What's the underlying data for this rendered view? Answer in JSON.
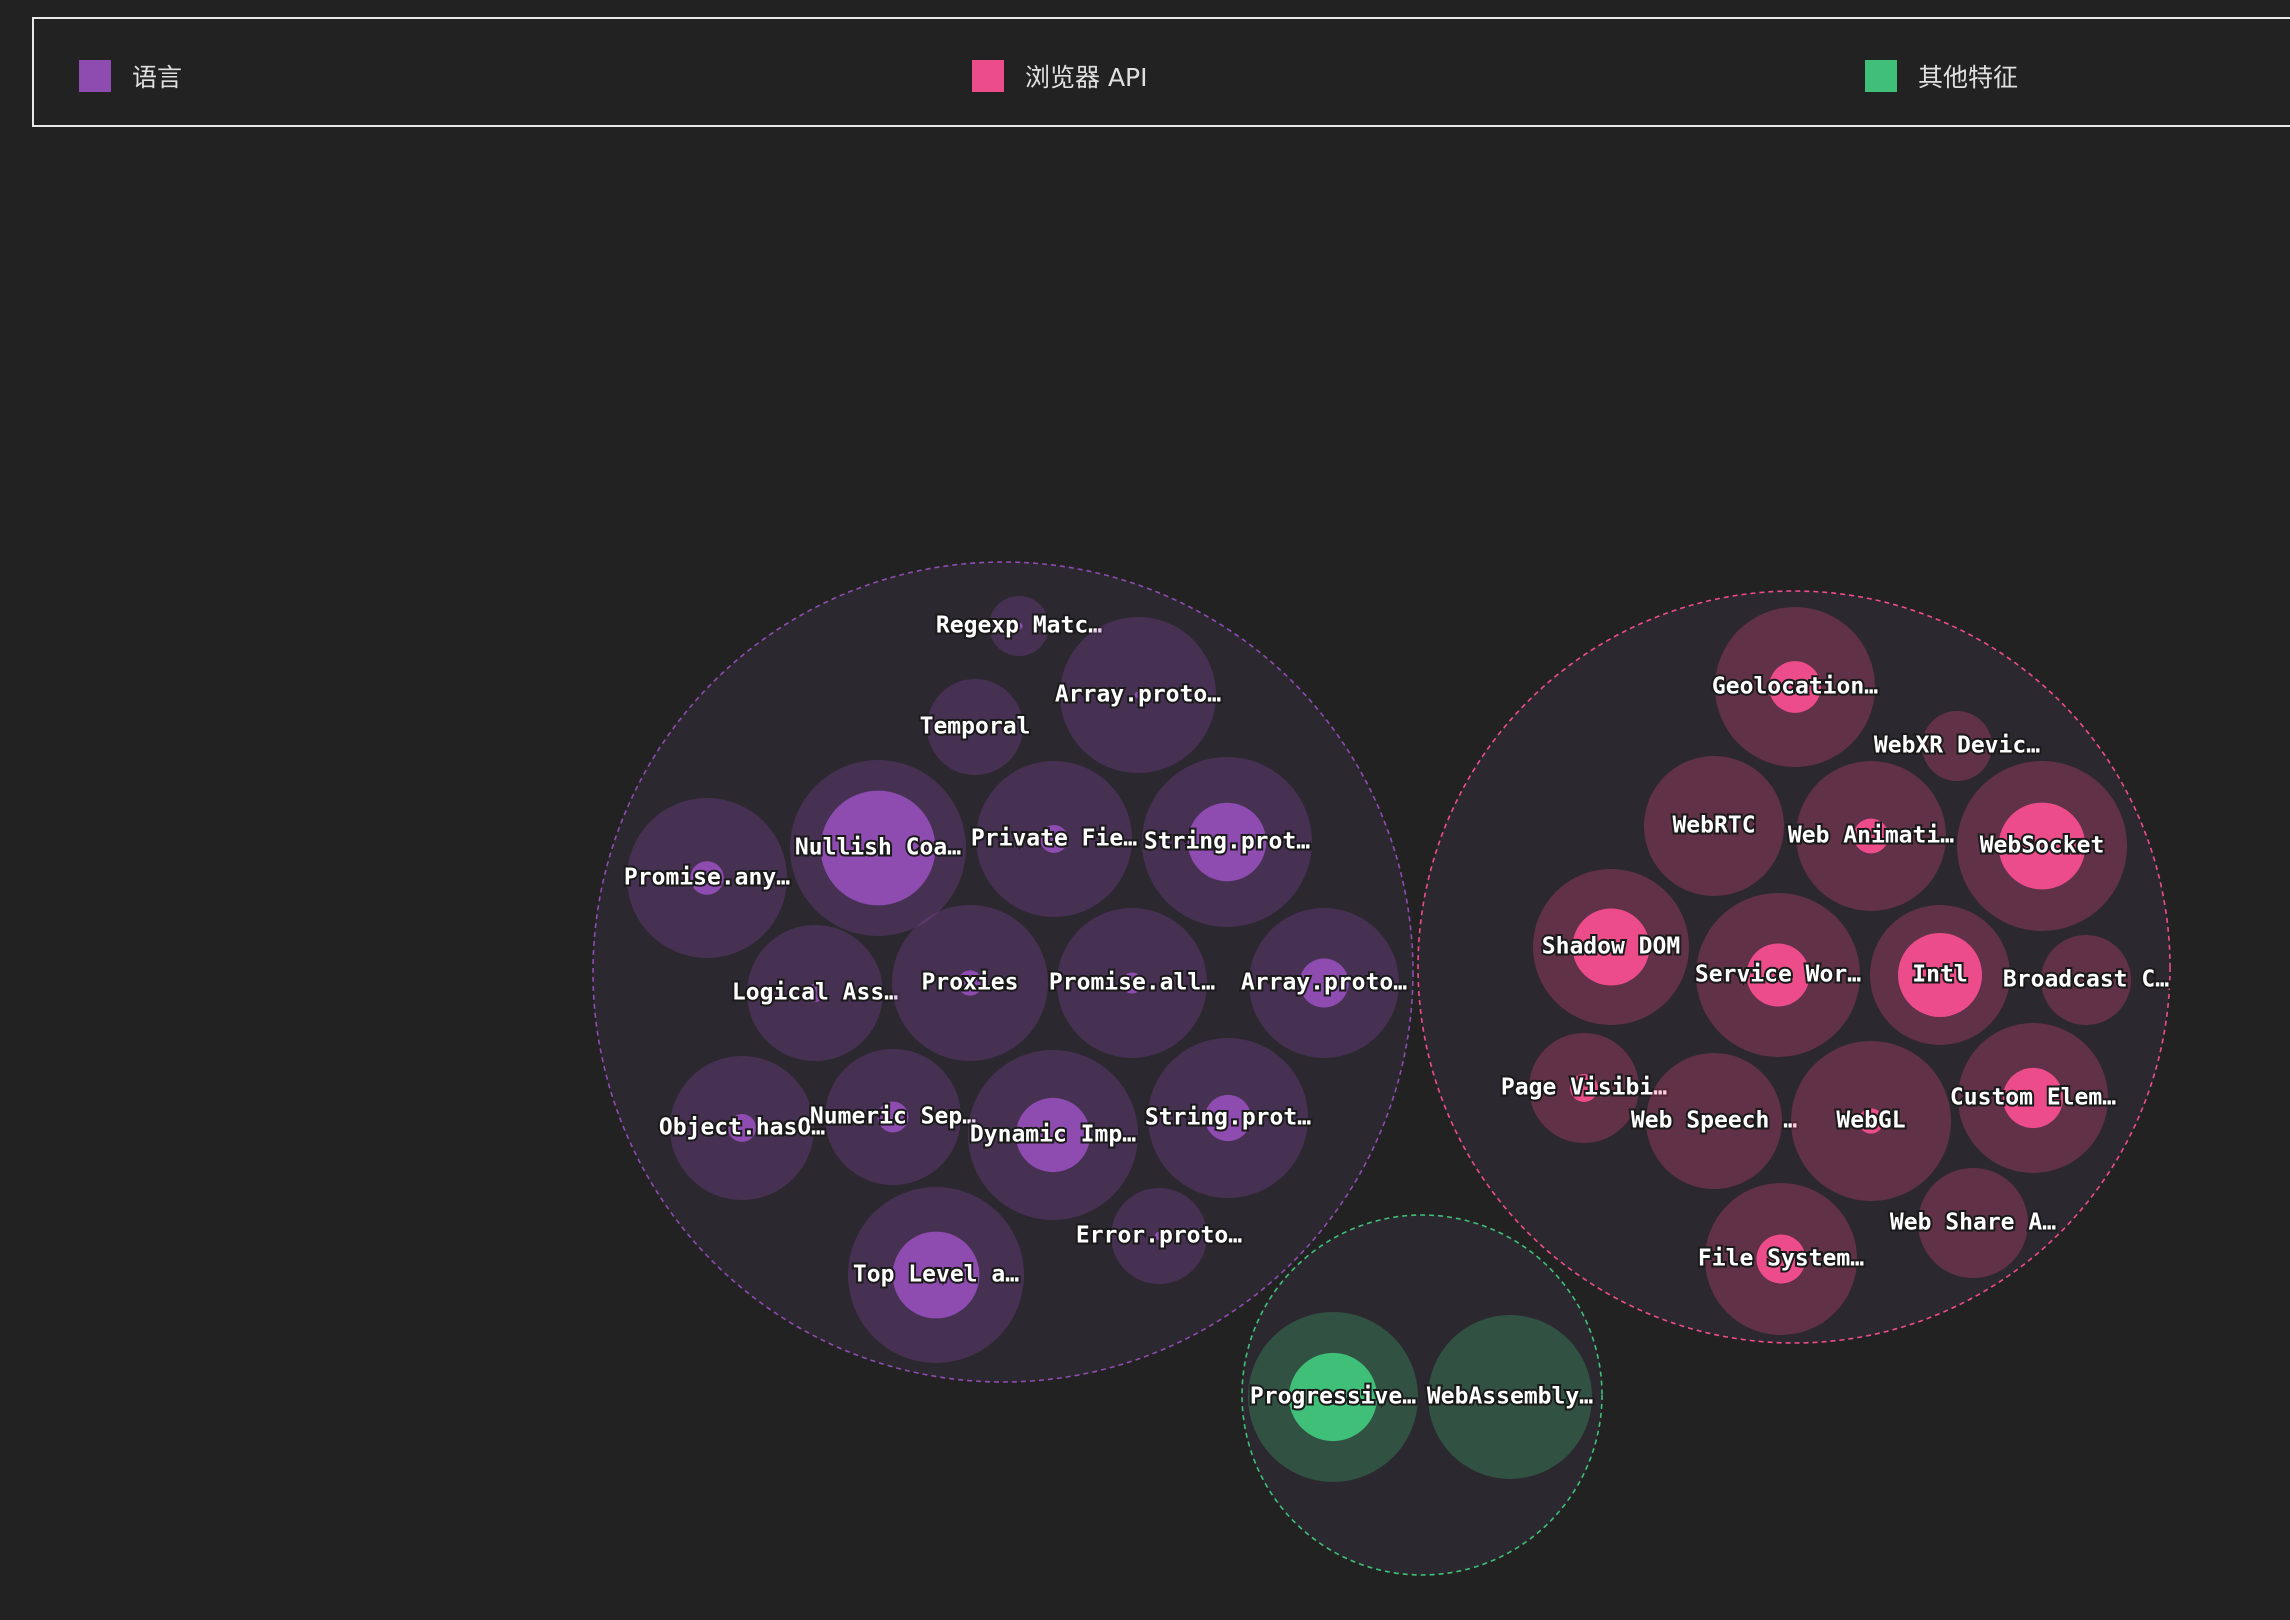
{
  "legend": [
    {
      "label": "语言",
      "color": "#8e4bb0"
    },
    {
      "label": "浏览器 API",
      "color": "#ec4d8a"
    },
    {
      "label": "其他特征",
      "color": "#3fbf77"
    }
  ],
  "chart_data": {
    "type": "packed-bubble",
    "groups": [
      {
        "name": "语言",
        "color": "#8e4bb0",
        "items": [
          {
            "label": "Regexp Matc…",
            "size": 30,
            "value": 5
          },
          {
            "label": "Array.proto…",
            "size": 78,
            "value": 5
          },
          {
            "label": "Temporal",
            "size": 48,
            "value": 0
          },
          {
            "label": "Nullish Coa…",
            "size": 88,
            "value": 82
          },
          {
            "label": "Private Fie…",
            "size": 78,
            "value": 20
          },
          {
            "label": "String.prot…",
            "size": 85,
            "value": 56
          },
          {
            "label": "Promise.any…",
            "size": 80,
            "value": 24
          },
          {
            "label": "Logical Ass…",
            "size": 68,
            "value": 13
          },
          {
            "label": "Proxies",
            "size": 78,
            "value": 18
          },
          {
            "label": "Promise.all…",
            "size": 75,
            "value": 15
          },
          {
            "label": "Array.proto…",
            "size": 75,
            "value": 35
          },
          {
            "label": "Object.hasO…",
            "size": 72,
            "value": 20
          },
          {
            "label": "Numeric Sep…",
            "size": 68,
            "value": 22
          },
          {
            "label": "Dynamic Imp…",
            "size": 85,
            "value": 53
          },
          {
            "label": "String.prot…",
            "size": 80,
            "value": 33
          },
          {
            "label": "Error.proto…",
            "size": 48,
            "value": 6
          },
          {
            "label": "Top Level a…",
            "size": 88,
            "value": 62
          }
        ]
      },
      {
        "name": "浏览器 API",
        "color": "#ec4d8a",
        "items": [
          {
            "label": "Geolocation…",
            "size": 80,
            "value": 37
          },
          {
            "label": "WebXR Devic…",
            "size": 35,
            "value": 0
          },
          {
            "label": "WebRTC",
            "size": 70,
            "value": 10
          },
          {
            "label": "Web Animati…",
            "size": 75,
            "value": 25
          },
          {
            "label": "WebSocket",
            "size": 85,
            "value": 62
          },
          {
            "label": "Shadow DOM",
            "size": 78,
            "value": 55
          },
          {
            "label": "Service Wor…",
            "size": 82,
            "value": 45
          },
          {
            "label": "Intl",
            "size": 70,
            "value": 60
          },
          {
            "label": "Broadcast C…",
            "size": 45,
            "value": 5
          },
          {
            "label": "Page Visibi…",
            "size": 55,
            "value": 20
          },
          {
            "label": "Web Speech …",
            "size": 68,
            "value": 2
          },
          {
            "label": "WebGL",
            "size": 80,
            "value": 18
          },
          {
            "label": "Custom Elem…",
            "size": 75,
            "value": 43
          },
          {
            "label": "Web Share A…",
            "size": 55,
            "value": 5
          },
          {
            "label": "File System…",
            "size": 76,
            "value": 35
          }
        ]
      },
      {
        "name": "其他特征",
        "color": "#3fbf77",
        "items": [
          {
            "label": "Progressive…",
            "size": 85,
            "value": 63
          },
          {
            "label": "WebAssembly…",
            "size": 82,
            "value": 5
          }
        ]
      }
    ]
  }
}
